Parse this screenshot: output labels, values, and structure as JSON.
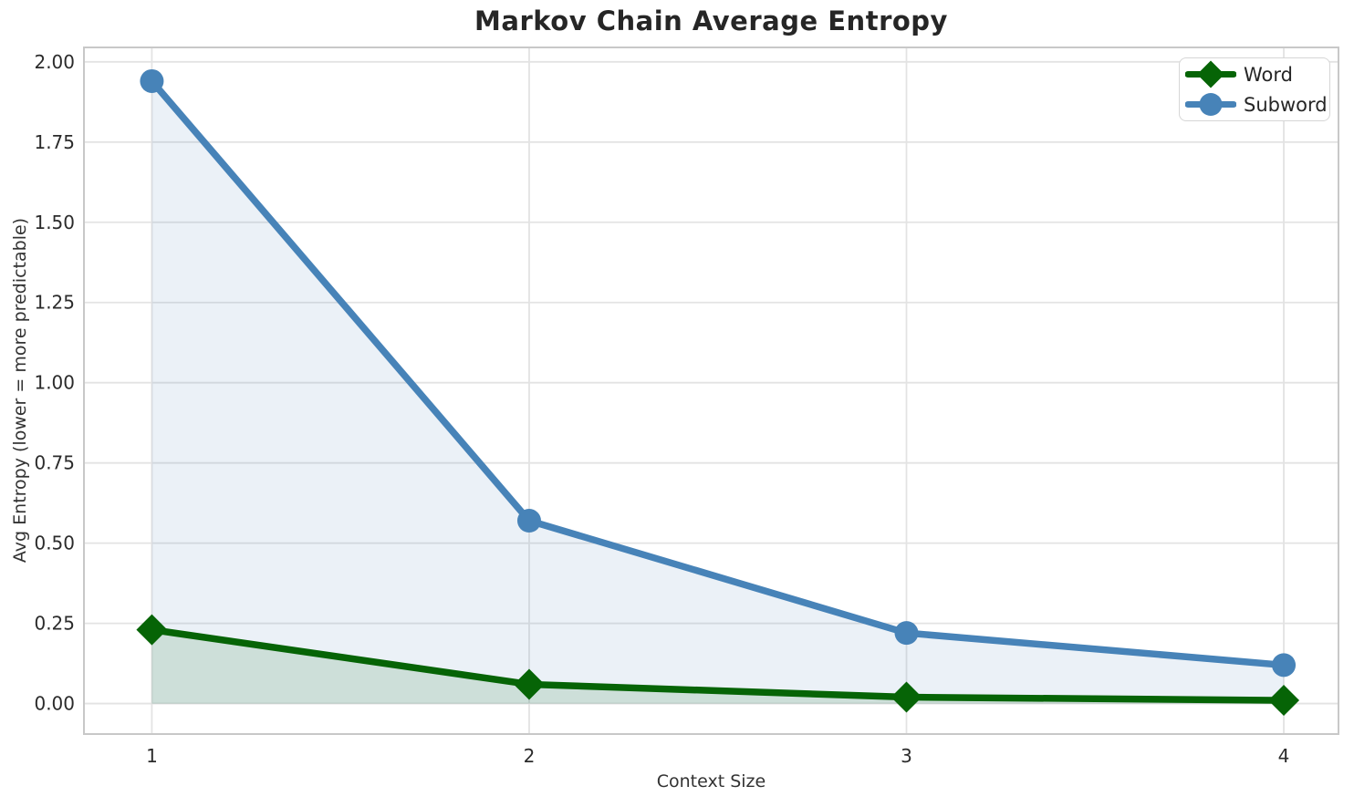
{
  "chart_data": {
    "type": "line",
    "title": "Markov Chain Average Entropy",
    "xlabel": "Context Size",
    "ylabel": "Avg Entropy (lower = more predictable)",
    "x": [
      1,
      2,
      3,
      4
    ],
    "series": [
      {
        "name": "Word",
        "marker": "diamond",
        "color": "#066406",
        "fill_color": "rgba(0,100,0,0.13)",
        "values": [
          0.23,
          0.06,
          0.02,
          0.01
        ]
      },
      {
        "name": "Subword",
        "marker": "circle",
        "color": "#4783b8",
        "fill_color": "rgba(70,125,185,0.11)",
        "values": [
          1.94,
          0.57,
          0.22,
          0.12
        ]
      }
    ],
    "xticks": [
      {
        "v": 1,
        "label": "1"
      },
      {
        "v": 2,
        "label": "2"
      },
      {
        "v": 3,
        "label": "3"
      },
      {
        "v": 4,
        "label": "4"
      }
    ],
    "yticks": [
      {
        "v": 0.0,
        "label": "0.00"
      },
      {
        "v": 0.25,
        "label": "0.25"
      },
      {
        "v": 0.5,
        "label": "0.50"
      },
      {
        "v": 0.75,
        "label": "0.75"
      },
      {
        "v": 1.0,
        "label": "1.00"
      },
      {
        "v": 1.25,
        "label": "1.25"
      },
      {
        "v": 1.5,
        "label": "1.50"
      },
      {
        "v": 1.75,
        "label": "1.75"
      },
      {
        "v": 2.0,
        "label": "2.00"
      }
    ],
    "xlim": [
      0.82,
      4.145
    ],
    "ylim": [
      -0.095,
      2.045
    ],
    "grid": true,
    "legend_position": "top-right",
    "colors": {
      "grid": "#e3e3e3",
      "spine": "#c8c8c8",
      "tick_text": "#2b2b2b",
      "background": "#ffffff"
    }
  }
}
